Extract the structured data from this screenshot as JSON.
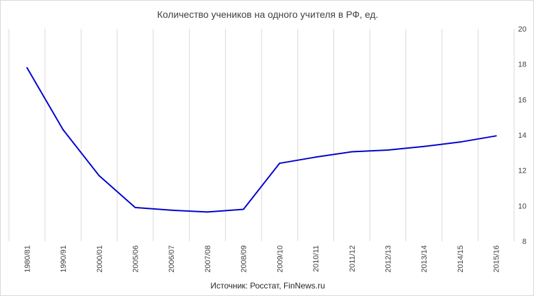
{
  "chart_data": {
    "type": "line",
    "title": "Количество учеников на одного учителя в РФ, ед.",
    "source": "Источник: Росстат, FinNews.ru",
    "categories": [
      "1980/81",
      "1990/91",
      "2000/01",
      "2005/06",
      "2006/07",
      "2007/08",
      "2008/09",
      "2009/10",
      "2010/11",
      "2011/12",
      "2012/13",
      "2013/14",
      "2014/15",
      "2015/16"
    ],
    "series": [
      {
        "values": [
          17.8,
          14.3,
          11.7,
          9.9,
          9.75,
          9.65,
          9.8,
          12.4,
          12.75,
          13.05,
          13.15,
          13.35,
          13.6,
          13.95
        ]
      }
    ],
    "ylim": [
      8,
      20
    ],
    "yticks": [
      8,
      10,
      12,
      14,
      16,
      18,
      20
    ],
    "y_axis_side": "right",
    "xlabel": "",
    "ylabel": "",
    "grid": "vertical",
    "line_color": "#0000cc",
    "legend": "none"
  }
}
